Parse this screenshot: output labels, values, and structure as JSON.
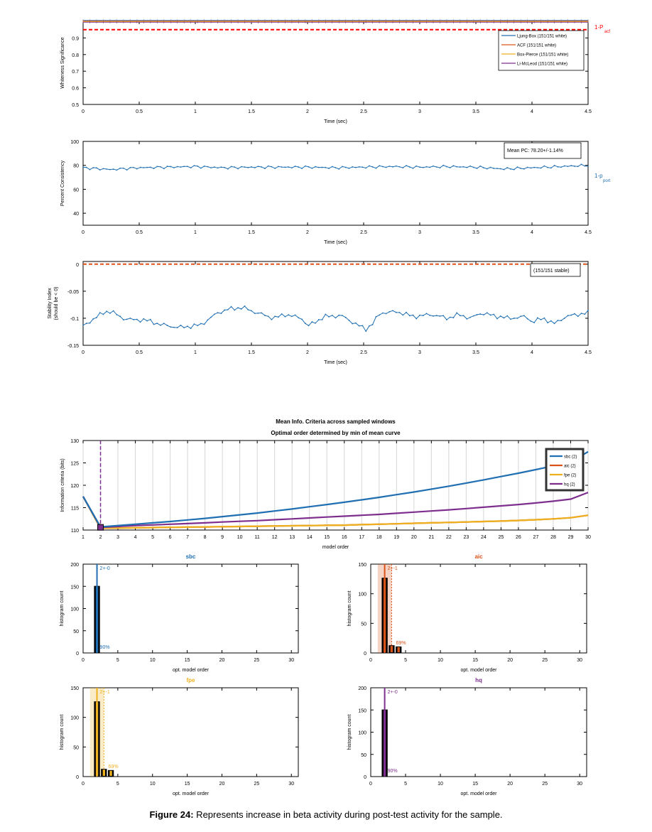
{
  "caption": {
    "label": "Figure 24:",
    "text": " Represents increase in beta activity during post-test activity for the sample."
  },
  "colors": {
    "blue": "#1f6fb2",
    "orange": "#d95319",
    "yellow": "#edb120",
    "purple": "#7e2f8e",
    "red_dashed": "#ff0000",
    "legend_frame": "#333333"
  },
  "chart_data": [
    {
      "id": "whiteness",
      "type": "line",
      "xlabel": "Time (sec)",
      "ylabel": "Whiteness Significance",
      "xlim": [
        0,
        4.5
      ],
      "ylim": [
        0.5,
        1.0
      ],
      "xticks": [
        0,
        0.5,
        1,
        1.5,
        2,
        2.5,
        3,
        3.5,
        4,
        4.5
      ],
      "xticklabels": [
        "0",
        "0.5",
        "1",
        "1.5",
        "2",
        "2.5",
        "3",
        "3.5",
        "4",
        "4.5"
      ],
      "yticks": [
        0.5,
        0.6,
        0.7,
        0.8,
        0.9
      ],
      "yticklabels": [
        "0.5",
        "0.6",
        "0.7",
        "0.8",
        "0.9"
      ],
      "threshold": {
        "y": 0.95,
        "label_main": "1-P",
        "label_sub": "acf"
      },
      "legend": [
        "Ljung-Box (151/151 white)",
        "ACF (151/151 white)",
        "Box-Pierce (151/151 white)",
        "Li-McLeod (151/151 white)"
      ],
      "series": [
        {
          "name": "Ljung-Box (151/151 white)",
          "constant": 1.0
        },
        {
          "name": "ACF (151/151 white)",
          "constant": 1.0
        },
        {
          "name": "Box-Pierce (151/151 white)",
          "constant": 1.0
        },
        {
          "name": "Li-McLeod (151/151 white)",
          "constant": 1.0
        }
      ]
    },
    {
      "id": "consistency",
      "type": "line",
      "xlabel": "Time (sec)",
      "ylabel": "Percent Consistency",
      "xlim": [
        0,
        4.5
      ],
      "ylim": [
        30,
        100
      ],
      "xticks": [
        0,
        0.5,
        1,
        1.5,
        2,
        2.5,
        3,
        3.5,
        4,
        4.5
      ],
      "xticklabels": [
        "0",
        "0.5",
        "1",
        "1.5",
        "2",
        "2.5",
        "3",
        "3.5",
        "4",
        "4.5"
      ],
      "yticks": [
        40,
        60,
        80,
        100
      ],
      "yticklabels": [
        "40",
        "60",
        "80",
        "100"
      ],
      "annotation": "Mean PC: 78.20+/-1.14%",
      "side_label": {
        "main": "1-p",
        "sub": "port"
      },
      "x": [
        0,
        0.25,
        0.5,
        0.75,
        1.0,
        1.25,
        1.5,
        1.75,
        2.0,
        2.25,
        2.5,
        2.75,
        3.0,
        3.25,
        3.5,
        3.75,
        4.0,
        4.25,
        4.5
      ],
      "y": [
        78,
        76.5,
        78,
        78.5,
        79,
        78,
        78.5,
        78.5,
        78.5,
        78,
        78.5,
        79,
        78.5,
        79,
        78.5,
        77,
        78,
        79,
        80
      ]
    },
    {
      "id": "stability",
      "type": "line",
      "xlabel": "Time (sec)",
      "ylabel": "Stability Index",
      "ylabel2": "(should be < 0)",
      "xlim": [
        0,
        4.5
      ],
      "ylim": [
        -0.15,
        0.005
      ],
      "xticks": [
        0,
        0.5,
        1,
        1.5,
        2,
        2.5,
        3,
        3.5,
        4,
        4.5
      ],
      "xticklabels": [
        "0",
        "0.5",
        "1",
        "1.5",
        "2",
        "2.5",
        "3",
        "3.5",
        "4",
        "4.5"
      ],
      "yticks": [
        0,
        -0.05,
        -0.1,
        -0.15
      ],
      "yticklabels": [
        "0",
        "-0.05",
        "-0.1",
        "-0.15"
      ],
      "threshold": {
        "y": 0
      },
      "annotation": "(151/151 stable)",
      "x": [
        0,
        0.1,
        0.2,
        0.25,
        0.35,
        0.45,
        0.55,
        0.7,
        0.85,
        1.0,
        1.05,
        1.2,
        1.3,
        1.42,
        1.55,
        1.7,
        1.8,
        1.95,
        2.0,
        2.15,
        2.3,
        2.45,
        2.52,
        2.58,
        2.65,
        2.8,
        2.95,
        3.1,
        3.25,
        3.35,
        3.45,
        3.55,
        3.65,
        3.8,
        3.95,
        4.0,
        4.1,
        4.2,
        4.3,
        4.4,
        4.5
      ],
      "y": [
        -0.115,
        -0.1,
        -0.088,
        -0.087,
        -0.1,
        -0.103,
        -0.103,
        -0.112,
        -0.117,
        -0.114,
        -0.112,
        -0.09,
        -0.083,
        -0.08,
        -0.09,
        -0.1,
        -0.093,
        -0.1,
        -0.115,
        -0.097,
        -0.095,
        -0.113,
        -0.12,
        -0.11,
        -0.09,
        -0.088,
        -0.097,
        -0.093,
        -0.1,
        -0.093,
        -0.1,
        -0.09,
        -0.095,
        -0.1,
        -0.097,
        -0.107,
        -0.1,
        -0.11,
        -0.097,
        -0.093,
        -0.09
      ]
    },
    {
      "id": "info_criteria",
      "type": "line",
      "title": "Mean Info. Criteria across sampled windows",
      "subtitle": "Optimal order determined by min of mean curve",
      "xlabel": "model order",
      "ylabel": "Information criteria (bits)",
      "xlim": [
        1,
        30
      ],
      "ylim": [
        110,
        130
      ],
      "xticks": [
        1,
        2,
        3,
        4,
        5,
        6,
        7,
        8,
        9,
        10,
        11,
        12,
        13,
        14,
        15,
        16,
        17,
        18,
        19,
        20,
        21,
        22,
        23,
        24,
        25,
        26,
        27,
        28,
        29,
        30
      ],
      "xticklabels": [
        "1",
        "2",
        "3",
        "4",
        "5",
        "6",
        "7",
        "8",
        "9",
        "10",
        "11",
        "12",
        "13",
        "14",
        "15",
        "16",
        "17",
        "18",
        "19",
        "20",
        "21",
        "22",
        "23",
        "24",
        "25",
        "26",
        "27",
        "28",
        "29",
        "30"
      ],
      "yticks": [
        110,
        115,
        120,
        125,
        130
      ],
      "yticklabels": [
        "110",
        "115",
        "120",
        "125",
        "130"
      ],
      "vline_x": 2,
      "legend": [
        "sbc (2)",
        "aic (2)",
        "fpe (2)",
        "hq (2)"
      ],
      "series": [
        {
          "name": "sbc (2)",
          "x": [
            1,
            2,
            3,
            4,
            5,
            6,
            7,
            8,
            9,
            10,
            11,
            12,
            13,
            14,
            15,
            16,
            17,
            18,
            19,
            20,
            21,
            22,
            23,
            24,
            25,
            26,
            27,
            28,
            29,
            30
          ],
          "y": [
            117.5,
            110.7,
            111.0,
            111.3,
            111.6,
            111.9,
            112.25,
            112.6,
            113.0,
            113.4,
            113.8,
            114.25,
            114.7,
            115.2,
            115.7,
            116.2,
            116.75,
            117.3,
            117.9,
            118.5,
            119.15,
            119.8,
            120.5,
            121.2,
            121.95,
            122.7,
            123.5,
            124.35,
            125.2,
            127.5
          ]
        },
        {
          "name": "aic (2)",
          "x": [
            1,
            2,
            3,
            4,
            5,
            6,
            7,
            8,
            9,
            10,
            11,
            12,
            13,
            14,
            15,
            16,
            17,
            18,
            19,
            20,
            21,
            22,
            23,
            24,
            25,
            26,
            27,
            28,
            29,
            30
          ],
          "y": [
            117.5,
            110.4,
            110.45,
            110.5,
            110.55,
            110.6,
            110.65,
            110.7,
            110.75,
            110.8,
            110.85,
            110.9,
            110.95,
            111.0,
            111.05,
            111.1,
            111.2,
            111.3,
            111.4,
            111.5,
            111.6,
            111.7,
            111.8,
            111.9,
            112.0,
            112.15,
            112.3,
            112.5,
            112.75,
            113.3
          ]
        },
        {
          "name": "fpe (2)",
          "x": [
            1,
            2,
            3,
            4,
            5,
            6,
            7,
            8,
            9,
            10,
            11,
            12,
            13,
            14,
            15,
            16,
            17,
            18,
            19,
            20,
            21,
            22,
            23,
            24,
            25,
            26,
            27,
            28,
            29,
            30
          ],
          "y": [
            117.5,
            110.4,
            110.45,
            110.5,
            110.55,
            110.6,
            110.65,
            110.7,
            110.75,
            110.8,
            110.85,
            110.9,
            110.95,
            111.0,
            111.05,
            111.1,
            111.2,
            111.3,
            111.4,
            111.5,
            111.6,
            111.7,
            111.8,
            111.9,
            112.0,
            112.15,
            112.3,
            112.5,
            112.75,
            113.3
          ]
        },
        {
          "name": "hq (2)",
          "x": [
            1,
            2,
            3,
            4,
            5,
            6,
            7,
            8,
            9,
            10,
            11,
            12,
            13,
            14,
            15,
            16,
            17,
            18,
            19,
            20,
            21,
            22,
            23,
            24,
            25,
            26,
            27,
            28,
            29,
            30
          ],
          "y": [
            117.5,
            110.6,
            110.8,
            111.0,
            111.15,
            111.3,
            111.45,
            111.6,
            111.8,
            111.95,
            112.1,
            112.3,
            112.5,
            112.7,
            112.9,
            113.1,
            113.3,
            113.5,
            113.75,
            114.0,
            114.25,
            114.5,
            114.8,
            115.1,
            115.4,
            115.7,
            116.05,
            116.45,
            116.9,
            118.4
          ]
        }
      ]
    },
    {
      "id": "hist_sbc",
      "type": "bar",
      "title": "sbc",
      "xlabel": "opt. model order",
      "ylabel": "histogram count",
      "xlim": [
        0,
        31
      ],
      "ylim": [
        0,
        200
      ],
      "xticks": [
        0,
        5,
        10,
        15,
        20,
        25,
        30
      ],
      "xticklabels": [
        "0",
        "5",
        "10",
        "15",
        "20",
        "25",
        "30"
      ],
      "yticks": [
        0,
        50,
        100,
        150,
        200
      ],
      "yticklabels": [
        "0",
        "50",
        "100",
        "150",
        "200"
      ],
      "categories": [
        2
      ],
      "values": [
        151
      ],
      "mode_x": 2,
      "band": null,
      "mode_label": "2+-0",
      "pct_label": "90%"
    },
    {
      "id": "hist_aic",
      "type": "bar",
      "title": "aic",
      "xlabel": "opt. model order",
      "ylabel": "histogram count",
      "xlim": [
        0,
        31
      ],
      "ylim": [
        0,
        150
      ],
      "xticks": [
        0,
        5,
        10,
        15,
        20,
        25,
        30
      ],
      "xticklabels": [
        "0",
        "5",
        "10",
        "15",
        "20",
        "25",
        "30"
      ],
      "yticks": [
        0,
        50,
        100,
        150
      ],
      "yticklabels": [
        "0",
        "50",
        "100",
        "150"
      ],
      "categories": [
        2,
        3,
        4
      ],
      "values": [
        127,
        13,
        11
      ],
      "mode_x": 2,
      "band": [
        1,
        3
      ],
      "mode_label": "2+-1",
      "pct_label": "69%"
    },
    {
      "id": "hist_fpe",
      "type": "bar",
      "title": "fpe",
      "xlabel": "opt. model order",
      "ylabel": "histogram count",
      "xlim": [
        0,
        31
      ],
      "ylim": [
        0,
        150
      ],
      "xticks": [
        0,
        5,
        10,
        15,
        20,
        25,
        30
      ],
      "xticklabels": [
        "0",
        "5",
        "10",
        "15",
        "20",
        "25",
        "30"
      ],
      "yticks": [
        0,
        50,
        100,
        150
      ],
      "yticklabels": [
        "0",
        "50",
        "100",
        "150"
      ],
      "categories": [
        2,
        3,
        4
      ],
      "values": [
        127,
        13,
        11
      ],
      "mode_x": 2,
      "band": [
        1,
        3
      ],
      "mode_label": "2+-1",
      "pct_label": "69%"
    },
    {
      "id": "hist_hq",
      "type": "bar",
      "title": "hq",
      "xlabel": "opt. model order",
      "ylabel": "histogram count",
      "xlim": [
        0,
        31
      ],
      "ylim": [
        0,
        200
      ],
      "xticks": [
        0,
        5,
        10,
        15,
        20,
        25,
        30
      ],
      "xticklabels": [
        "0",
        "5",
        "10",
        "15",
        "20",
        "25",
        "30"
      ],
      "yticks": [
        0,
        50,
        100,
        150,
        200
      ],
      "yticklabels": [
        "0",
        "50",
        "100",
        "150",
        "200"
      ],
      "categories": [
        2
      ],
      "values": [
        151
      ],
      "mode_x": 2,
      "band": null,
      "mode_label": "2+-0",
      "pct_label": "90%"
    }
  ]
}
